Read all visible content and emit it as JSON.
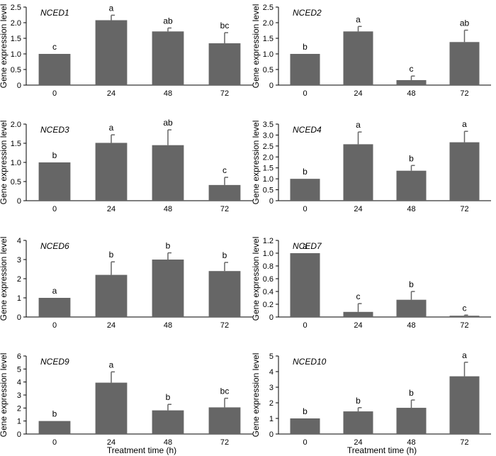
{
  "figure": {
    "ylabel": "Gene expression level",
    "xlabel": "Treatment time (h)",
    "bar_color": "#666666"
  },
  "chart_data": [
    {
      "type": "bar",
      "title": "NCED1",
      "categories": [
        "0",
        "24",
        "48",
        "72"
      ],
      "values": [
        1.0,
        2.08,
        1.72,
        1.34
      ],
      "errors": [
        0.0,
        0.16,
        0.11,
        0.34
      ],
      "letters": [
        "c",
        "a",
        "ab",
        "bc"
      ],
      "ylim": [
        0,
        2.5
      ],
      "yticks": [
        "0",
        "0.5",
        "1.0",
        "1.5",
        "2.0",
        "2.5"
      ]
    },
    {
      "type": "bar",
      "title": "NCED2",
      "categories": [
        "0",
        "24",
        "48",
        "72"
      ],
      "values": [
        1.0,
        1.72,
        0.16,
        1.38
      ],
      "errors": [
        0.0,
        0.16,
        0.13,
        0.38
      ],
      "letters": [
        "b",
        "a",
        "c",
        "ab"
      ],
      "ylim": [
        0,
        2.5
      ],
      "yticks": [
        "0",
        "0.5",
        "1.0",
        "1.5",
        "2.0",
        "2.5"
      ]
    },
    {
      "type": "bar",
      "title": "NCED3",
      "categories": [
        "0",
        "24",
        "48",
        "72"
      ],
      "values": [
        1.0,
        1.51,
        1.45,
        0.41
      ],
      "errors": [
        0.0,
        0.21,
        0.4,
        0.2
      ],
      "letters": [
        "b",
        "a",
        "ab",
        "c"
      ],
      "ylim": [
        0,
        2.0
      ],
      "yticks": [
        "0",
        "0.5",
        "1.0",
        "1.5",
        "2.0"
      ]
    },
    {
      "type": "bar",
      "title": "NCED4",
      "categories": [
        "0",
        "24",
        "48",
        "72"
      ],
      "values": [
        1.0,
        2.58,
        1.37,
        2.67
      ],
      "errors": [
        0.0,
        0.56,
        0.24,
        0.5
      ],
      "letters": [
        "b",
        "a",
        "b",
        "a"
      ],
      "ylim": [
        0,
        3.5
      ],
      "yticks": [
        "0",
        "0.5",
        "1.0",
        "1.5",
        "2.0",
        "2.5",
        "3.0",
        "3.5"
      ]
    },
    {
      "type": "bar",
      "title": "NCED6",
      "categories": [
        "0",
        "24",
        "48",
        "72"
      ],
      "values": [
        1.0,
        2.2,
        3.0,
        2.4
      ],
      "errors": [
        0.0,
        0.68,
        0.35,
        0.45
      ],
      "letters": [
        "a",
        "b",
        "b",
        "b"
      ],
      "ylim": [
        0,
        4
      ],
      "yticks": [
        "0",
        "1",
        "2",
        "3",
        "4"
      ]
    },
    {
      "type": "bar",
      "title": "NCED7",
      "categories": [
        "0",
        "24",
        "48",
        "72"
      ],
      "values": [
        1.0,
        0.08,
        0.27,
        0.02
      ],
      "errors": [
        0.0,
        0.13,
        0.13,
        0.01
      ],
      "letters": [
        "a",
        "c",
        "b",
        "c"
      ],
      "ylim": [
        0,
        1.2
      ],
      "yticks": [
        "0",
        "0.2",
        "0.4",
        "0.6",
        "0.8",
        "1.0",
        "1.2"
      ]
    },
    {
      "type": "bar",
      "title": "NCED9",
      "categories": [
        "0",
        "24",
        "48",
        "72"
      ],
      "values": [
        1.0,
        3.95,
        1.82,
        2.05
      ],
      "errors": [
        0.0,
        0.83,
        0.46,
        0.7
      ],
      "letters": [
        "b",
        "a",
        "b",
        "bc"
      ],
      "ylim": [
        0,
        6
      ],
      "yticks": [
        "0",
        "1",
        "2",
        "3",
        "4",
        "5",
        "6"
      ]
    },
    {
      "type": "bar",
      "title": "NCED10",
      "categories": [
        "0",
        "24",
        "48",
        "72"
      ],
      "values": [
        1.0,
        1.45,
        1.68,
        3.7
      ],
      "errors": [
        0.0,
        0.24,
        0.5,
        0.9
      ],
      "letters": [
        "b",
        "b",
        "b",
        "a"
      ],
      "ylim": [
        0,
        5
      ],
      "yticks": [
        "0",
        "1",
        "2",
        "3",
        "4",
        "5"
      ]
    }
  ]
}
